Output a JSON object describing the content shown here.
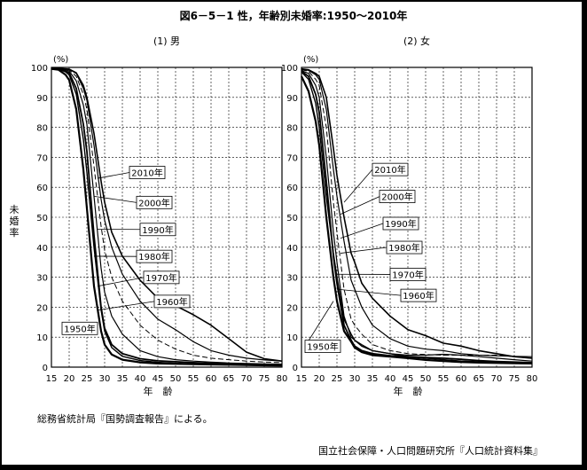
{
  "title": "図6－5－1 性，年齢別未婚率:1950～2010年",
  "ylabel": "未婚率",
  "y_unit": "(%)",
  "xlabel": "年　齢",
  "footnote": "総務省統計局『国勢調査報告』による。",
  "source": "国立社会保障・人口問題研究所『人口統計資料集』",
  "chart_data": [
    {
      "type": "line",
      "title": "(1) 男",
      "xlim": [
        15,
        80
      ],
      "ylim": [
        0,
        100
      ],
      "x": [
        15,
        17,
        19,
        20,
        22,
        24,
        25,
        27,
        29,
        30,
        32,
        35,
        40,
        45,
        50,
        55,
        60,
        65,
        70,
        75,
        80
      ],
      "series": [
        {
          "name": "1950年",
          "values": [
            99.5,
            99.2,
            97.5,
            95.8,
            86,
            66,
            53,
            27,
            12,
            7.5,
            4.2,
            2.5,
            1.6,
            1.2,
            1.1,
            1,
            0.9,
            0.8,
            0.7,
            0.6,
            0.5
          ]
        },
        {
          "name": "1960年",
          "values": [
            99.6,
            99.4,
            98.5,
            97.5,
            91,
            76,
            65,
            40,
            19,
            12,
            6.5,
            3.6,
            2.2,
            1.6,
            1.3,
            1.1,
            1,
            0.9,
            0.8,
            0.7,
            0.6
          ]
        },
        {
          "name": "1970年",
          "values": [
            99.7,
            99.5,
            98.8,
            98.2,
            93,
            81,
            72,
            44,
            20,
            13,
            7.5,
            4.5,
            2.8,
            2.1,
            1.8,
            1.5,
            1.3,
            1.1,
            1,
            0.9,
            0.8
          ]
        },
        {
          "name": "1980年",
          "values": [
            99.7,
            99.6,
            99.2,
            98.8,
            95.5,
            87.5,
            81,
            57,
            33,
            25,
            17,
            11,
            5.5,
            3.5,
            2.5,
            2,
            1.7,
            1.4,
            1.2,
            1.1,
            1
          ]
        },
        {
          "name": "1990年",
          "values": [
            99.8,
            99.7,
            99.4,
            99.2,
            97,
            91,
            86,
            67,
            47,
            39,
            30,
            22,
            14,
            9,
            6,
            4,
            3,
            2.5,
            2,
            1.7,
            1.5
          ]
        },
        {
          "name": "2000年",
          "values": [
            99.8,
            99.7,
            99.5,
            99.4,
            98,
            93,
            89,
            74,
            56,
            49,
            40,
            31,
            22,
            16,
            12.5,
            8.5,
            5.5,
            4,
            3,
            2.4,
            2
          ]
        },
        {
          "name": "2010年",
          "values": [
            99.8,
            99.7,
            99.5,
            99.4,
            98.2,
            94,
            90,
            78,
            62,
            55,
            45,
            37,
            29,
            23,
            20.5,
            17.5,
            14,
            9.5,
            5,
            2.8,
            2
          ]
        }
      ]
    },
    {
      "type": "line",
      "title": "(2) 女",
      "xlim": [
        15,
        80
      ],
      "ylim": [
        0,
        100
      ],
      "x": [
        15,
        17,
        19,
        20,
        22,
        24,
        25,
        27,
        29,
        30,
        32,
        35,
        40,
        45,
        50,
        55,
        60,
        65,
        70,
        75,
        80
      ],
      "series": [
        {
          "name": "1950年",
          "values": [
            97,
            92,
            82,
            74,
            50,
            30,
            22,
            12,
            8.5,
            6.5,
            5,
            4,
            3.5,
            3,
            2.4,
            2,
            1.7,
            1.5,
            1.4,
            1.3,
            1.2
          ]
        },
        {
          "name": "1960年",
          "values": [
            98.5,
            96,
            88,
            80,
            57,
            38,
            30,
            16,
            11,
            9,
            7,
            5.5,
            4.5,
            3.5,
            3,
            2.5,
            2,
            1.8,
            1.6,
            1.5,
            1.4
          ]
        },
        {
          "name": "1970年",
          "values": [
            98.7,
            97,
            91,
            85,
            62,
            37,
            28,
            14,
            9,
            7,
            5.5,
            4.5,
            3.8,
            3.5,
            3.2,
            3,
            2.6,
            2.2,
            1.9,
            1.7,
            1.5
          ]
        },
        {
          "name": "1980年",
          "values": [
            98.9,
            98,
            94,
            90,
            70,
            45,
            35,
            17,
            10,
            9,
            7.5,
            5.5,
            4.5,
            4,
            4,
            4.3,
            4,
            3.5,
            3,
            2.5,
            2
          ]
        },
        {
          "name": "1990年",
          "values": [
            99.2,
            98.7,
            96,
            94,
            80,
            55,
            45,
            26,
            16,
            14,
            11,
            7.5,
            5.5,
            4.5,
            4.2,
            4,
            4,
            4,
            4,
            3.5,
            3
          ]
        },
        {
          "name": "2000年",
          "values": [
            99.4,
            99,
            97.5,
            96,
            86,
            66,
            57,
            42,
            29,
            26,
            20,
            14,
            9.5,
            7,
            6,
            5.5,
            4.5,
            4,
            3.8,
            3.6,
            3.5
          ]
        },
        {
          "name": "2010年",
          "values": [
            99.5,
            99.2,
            98,
            97,
            90,
            73,
            64,
            50,
            38,
            35,
            28,
            23,
            17,
            12.5,
            10.5,
            8,
            7,
            5.5,
            4.5,
            3.5,
            3
          ]
        }
      ]
    }
  ]
}
